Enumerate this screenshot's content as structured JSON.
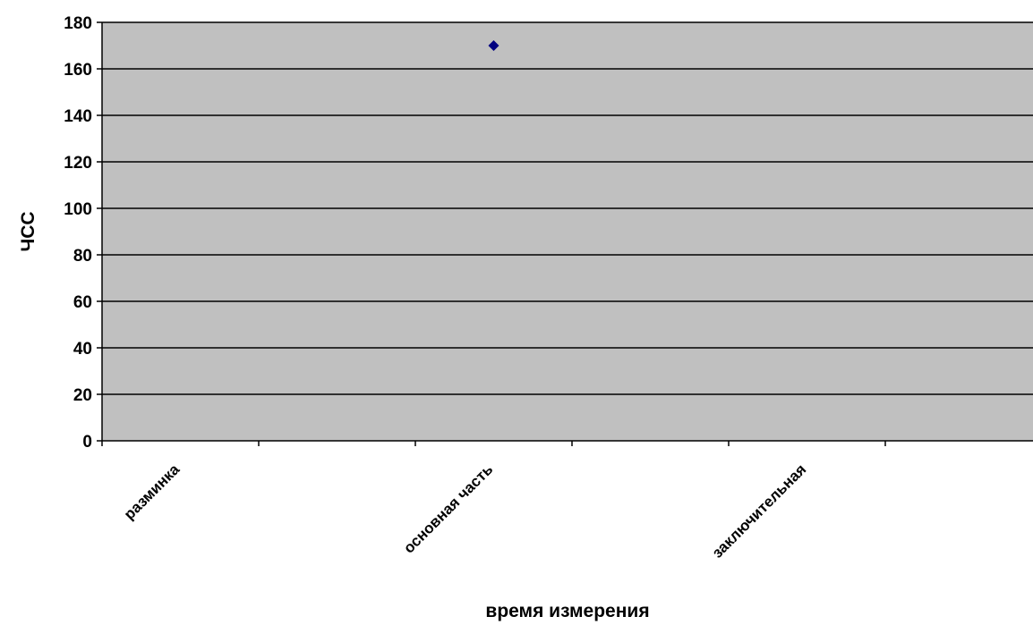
{
  "chart_data": {
    "type": "scatter",
    "title": "",
    "xlabel": "время измерения",
    "ylabel": "ЧСС",
    "categories": [
      "разминка",
      "основная часть",
      "заключительная"
    ],
    "ylim": [
      0,
      180
    ],
    "yticks": [
      0,
      20,
      40,
      60,
      80,
      100,
      120,
      140,
      160,
      180
    ],
    "grid": true,
    "legend": "none",
    "series": [
      {
        "x": [
          2.5
        ],
        "values": [
          170
        ],
        "color": "#000080",
        "marker": "diamond"
      }
    ],
    "colors": {
      "plot_background": "#c0c0c0",
      "gridline": "#000000"
    }
  }
}
